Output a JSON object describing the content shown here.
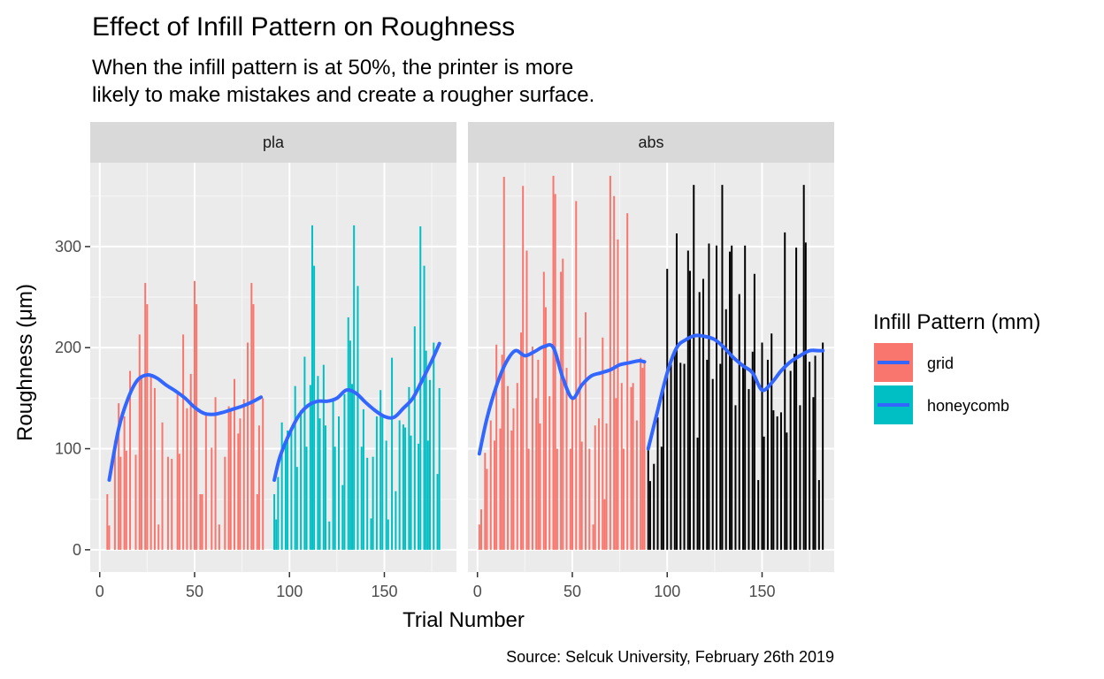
{
  "chart_data": {
    "type": "bar",
    "title": "Effect of Infill Pattern on Roughness",
    "subtitle_lines": [
      "When the infill pattern is at 50%, the printer is more",
      "likely to make mistakes and create a rougher surface."
    ],
    "caption": "Source: Selcuk University, February 26th 2019",
    "xlabel": "Trial Number",
    "ylabel": "Roughness (μm)",
    "xlim": [
      -5,
      188
    ],
    "ylim": [
      -22,
      383
    ],
    "x_ticks": [
      0,
      50,
      100,
      150
    ],
    "y_ticks": [
      0,
      100,
      200,
      300
    ],
    "grid": true,
    "smooth_color": "#3366FF",
    "legend": {
      "title": "Infill Pattern (mm)",
      "position": "right",
      "items": [
        {
          "label": "grid",
          "color": "#F8766D"
        },
        {
          "label": "honeycomb",
          "color": "#00BFC4"
        }
      ]
    },
    "panels": [
      {
        "strip": "pla",
        "series": [
          {
            "name": "grid",
            "color": "#F8766D",
            "x": [
              4,
              5,
              8,
              10,
              11,
              13,
              14,
              16,
              19,
              21,
              22,
              24,
              25,
              27,
              29,
              31,
              33,
              36,
              38,
              41,
              42,
              44,
              46,
              48,
              50,
              51,
              53,
              54,
              56,
              59,
              61,
              63,
              66,
              68,
              69,
              71,
              73,
              74,
              76,
              78,
              80,
              81,
              83,
              84,
              86
            ],
            "y": [
              55,
              24,
              108,
              145,
              92,
              132,
              98,
              177,
              94,
              213,
              171,
              264,
              243,
              171,
              160,
              25,
              126,
              92,
              90,
              156,
              95,
              213,
              140,
              174,
              266,
              243,
              55,
              55,
              133,
              101,
              151,
              25,
              92,
              142,
              140,
              169,
              115,
              130,
              149,
              205,
              264,
              243,
              55,
              123,
              150
            ]
          },
          {
            "name": "honeycomb",
            "color": "#00BFC4",
            "x": [
              92,
              93,
              94,
              96,
              98,
              99,
              101,
              103,
              104,
              106,
              108,
              109,
              111,
              112,
              113,
              115,
              116,
              118,
              119,
              121,
              123,
              124,
              126,
              128,
              129,
              131,
              132,
              133,
              134,
              136,
              138,
              139,
              141,
              143,
              144,
              146,
              148,
              149,
              151,
              152,
              154,
              156,
              158,
              160,
              161,
              163,
              164,
              166,
              168,
              169,
              171,
              172,
              173,
              174,
              176,
              178,
              179
            ],
            "y": [
              55,
              30,
              72,
              126,
              106,
              118,
              118,
              162,
              82,
              138,
              191,
              102,
              163,
              321,
              281,
              172,
              130,
              183,
              123,
              28,
              150,
              102,
              132,
              64,
              154,
              230,
              207,
              164,
              321,
              261,
              102,
              139,
              91,
              31,
              92,
              132,
              158,
              132,
              108,
              30,
              190,
              58,
              128,
              124,
              121,
              161,
              113,
              221,
              105,
              320,
              281,
              197,
              108,
              168,
              205,
              75,
              160
            ]
          }
        ],
        "smooth": [
          {
            "name": "grid",
            "x": [
              5,
              10,
              15,
              20,
              25,
              30,
              35,
              40,
              45,
              50,
              55,
              60,
              65,
              70,
              75,
              80,
              85
            ],
            "y": [
              69,
              120,
              150,
              168,
              173,
              170,
              163,
              157,
              150,
              141,
              135,
              134,
              136,
              139,
              142,
              146,
              151
            ]
          },
          {
            "name": "honeycomb",
            "x": [
              92,
              95,
              100,
              105,
              110,
              115,
              120,
              125,
              130,
              135,
              140,
              145,
              150,
              155,
              160,
              165,
              170,
              175,
              179
            ],
            "y": [
              69,
              92,
              115,
              133,
              143,
              147,
              147,
              150,
              158,
              155,
              146,
              138,
              132,
              131,
              140,
              150,
              168,
              187,
              204
            ]
          }
        ]
      },
      {
        "strip": "abs",
        "series": [
          {
            "name": "grid",
            "color": "#F8766D",
            "x": [
              1,
              2,
              4,
              5,
              7,
              9,
              10,
              12,
              13,
              14,
              16,
              18,
              19,
              21,
              23,
              24,
              26,
              27,
              29,
              31,
              32,
              33,
              35,
              36,
              38,
              40,
              41,
              42,
              44,
              45,
              47,
              49,
              50,
              52,
              54,
              55,
              57,
              59,
              61,
              62,
              64,
              66,
              67,
              68,
              70,
              72,
              73,
              74,
              76,
              77,
              79,
              81,
              82,
              84,
              86,
              87,
              88
            ],
            "y": [
              25,
              40,
              96,
              80,
              128,
              108,
              203,
              120,
              193,
              369,
              162,
              118,
              140,
              165,
              215,
              360,
              296,
              100,
              201,
              150,
              188,
              125,
              275,
              240,
              152,
              370,
              352,
              100,
              275,
              288,
              180,
              100,
              150,
              345,
              210,
              107,
              235,
              100,
              25,
              123,
              130,
              210,
              50,
              125,
              370,
              350,
              150,
              307,
              165,
              100,
              333,
              161,
              165,
              128,
              190,
              180,
              185
            ]
          },
          {
            "name": "honeycomb",
            "x": [
              90,
              91,
              93,
              95,
              97,
              98,
              100,
              102,
              104,
              105,
              107,
              109,
              111,
              112,
              114,
              116,
              117,
              119,
              121,
              122,
              124,
              126,
              128,
              129,
              131,
              133,
              134,
              136,
              138,
              140,
              141,
              143,
              145,
              146,
              148,
              150,
              151,
              153,
              155,
              156,
              158,
              160,
              162,
              163,
              165,
              167,
              168,
              170,
              172,
              173,
              175,
              177,
              178,
              180,
              182
            ],
            "y": [
              100,
              68,
              85,
              131,
              102,
              162,
              278,
              187,
              198,
              313,
              185,
              184,
              296,
              276,
              361,
              111,
              255,
              268,
              188,
              303,
              169,
              301,
              184,
              361,
              238,
              295,
              301,
              143,
              253,
              184,
              301,
              159,
              196,
              273,
              69,
              205,
              112,
              188,
              214,
              138,
              132,
              136,
              314,
              116,
              177,
              194,
              299,
              143,
              361,
              304,
              186,
              151,
              192,
              69,
              205
            ]
          }
        ],
        "smooth": [
          {
            "name": "grid",
            "x": [
              1,
              5,
              10,
              15,
              20,
              25,
              30,
              35,
              40,
              45,
              50,
              55,
              60,
              65,
              70,
              75,
              80,
              85,
              88
            ],
            "y": [
              95,
              130,
              162,
              185,
              197,
              192,
              196,
              201,
              200,
              170,
              150,
              163,
              172,
              175,
              178,
              183,
              185,
              187,
              186
            ]
          },
          {
            "name": "honeycomb",
            "x": [
              90,
              95,
              100,
              105,
              110,
              115,
              120,
              125,
              130,
              135,
              140,
              145,
              150,
              155,
              160,
              165,
              170,
              175,
              180,
              182
            ],
            "y": [
              100,
              138,
              175,
              200,
              208,
              212,
              211,
              208,
              200,
              190,
              182,
              175,
              158,
              165,
              177,
              186,
              192,
              197,
              197,
              197
            ]
          }
        ]
      }
    ]
  }
}
